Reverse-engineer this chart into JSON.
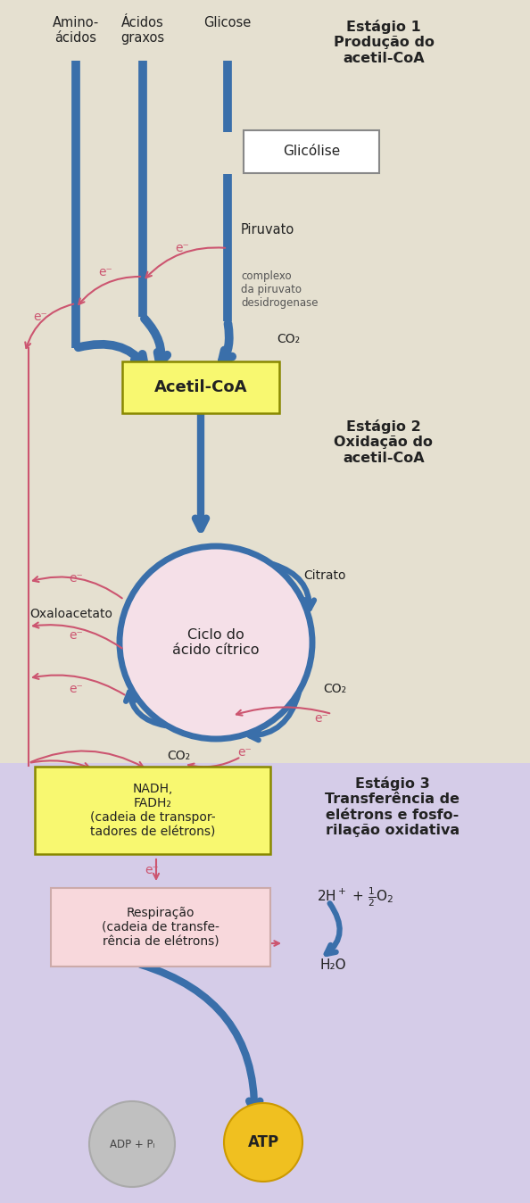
{
  "bg_color": "#e5e0d0",
  "stage3_bg": "#d5ccE8",
  "blue": "#3a6faa",
  "pink": "#cc5570",
  "yellow_box": "#f8f870",
  "yellow_atp": "#f0c020",
  "gray_adp": "#c0c0c0",
  "pink_box": "#f8d8dc",
  "circle_pink": "#f5e0e8",
  "title1": "Estágio 1\nProdução do\nacetil-CoA",
  "title2": "Estágio 2\nOxidação do\nacetil-CoA",
  "title3": "Estágio 3\nTransferência de\nelétrons e fosfo-\nrilação oxidativa",
  "label_amino": "Amino-\nácidos",
  "label_acidos": "Ácidos\ngraxos",
  "label_glicose": "Glicose",
  "label_glicolise": "Glicólise",
  "label_piruvato": "Piruvato",
  "label_complexo": "complexo\nda piruvato\ndesidrogenase",
  "label_co2": "CO₂",
  "label_acetil": "Acetil-CoA",
  "label_oxaloacetato": "Oxaloacetato",
  "label_citrato": "Citrato",
  "label_ciclo": "Ciclo do\nácido cítrico",
  "label_nadh": "NADH,\nFADH₂\n(cadeia de transpor-\ntadores de elétrons)",
  "label_eminus": "e⁻",
  "label_resp": "Respiração\n(cadeia de transfe-\nrência de elétrons)",
  "label_h2o": "H₂O",
  "label_adp": "ADP + Pᵢ",
  "label_atp": "ATP"
}
